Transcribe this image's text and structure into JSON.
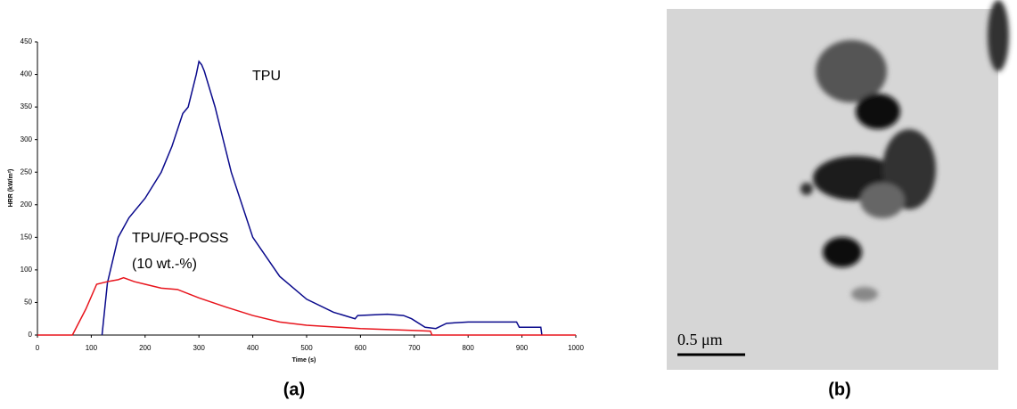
{
  "chart_data": {
    "type": "line",
    "xlabel": "Time (s)",
    "ylabel": "HRR (kW/m²)",
    "xlim": [
      0,
      1000
    ],
    "xticks": [
      0,
      100,
      200,
      300,
      400,
      500,
      600,
      700,
      800,
      900,
      1000
    ],
    "ylim": [
      0,
      450
    ],
    "yticks": [
      0,
      50,
      100,
      150,
      200,
      250,
      300,
      350,
      400,
      450
    ],
    "series": [
      {
        "name": "TPU",
        "color": "#0a0a8c",
        "x": [
          120,
          130,
          150,
          170,
          200,
          230,
          250,
          270,
          280,
          295,
          300,
          305,
          310,
          330,
          360,
          400,
          450,
          500,
          550,
          590,
          595,
          650,
          680,
          695,
          720,
          740,
          760,
          800,
          890,
          895,
          935,
          937
        ],
        "values": [
          0,
          80,
          150,
          180,
          210,
          250,
          290,
          340,
          350,
          400,
          420,
          415,
          405,
          350,
          250,
          150,
          90,
          55,
          35,
          25,
          30,
          32,
          30,
          25,
          12,
          10,
          18,
          20,
          20,
          12,
          12,
          0
        ]
      },
      {
        "name": "TPU/FQ-POSS",
        "color": "#e8141c",
        "x": [
          0,
          65,
          90,
          110,
          130,
          150,
          160,
          180,
          200,
          230,
          260,
          300,
          350,
          400,
          450,
          500,
          600,
          700,
          730,
          733,
          1000
        ],
        "values": [
          0,
          0,
          40,
          78,
          82,
          85,
          88,
          82,
          78,
          72,
          70,
          57,
          43,
          30,
          20,
          15,
          10,
          7,
          6,
          0,
          0
        ]
      }
    ],
    "annotations": [
      "(10 wt.-%)"
    ]
  },
  "figure": {
    "panel_labels": [
      "(a)",
      "(b)"
    ],
    "micrograph": {
      "scale_bar": "0.5 μm"
    }
  }
}
